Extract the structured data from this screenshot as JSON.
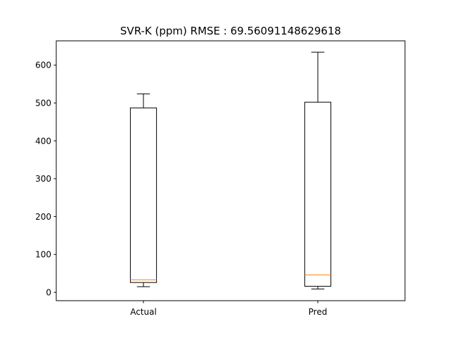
{
  "chart_data": {
    "type": "box",
    "title": "SVR-K (ppm) RMSE : 69.56091148629618",
    "xlabel": "",
    "ylabel": "",
    "ylim": [
      -22,
      664
    ],
    "y_ticks": [
      0,
      100,
      200,
      300,
      400,
      500,
      600
    ],
    "categories": [
      "Actual",
      "Pred"
    ],
    "boxes": [
      {
        "name": "Actual",
        "whisker_low": 15,
        "q1": 26,
        "median": 33,
        "q3": 487,
        "whisker_high": 524
      },
      {
        "name": "Pred",
        "whisker_low": 9,
        "q1": 16,
        "median": 46,
        "q3": 502,
        "whisker_high": 634
      }
    ],
    "grid": false,
    "colors": {
      "box": "#000000",
      "median": "#ff7f0e"
    }
  }
}
